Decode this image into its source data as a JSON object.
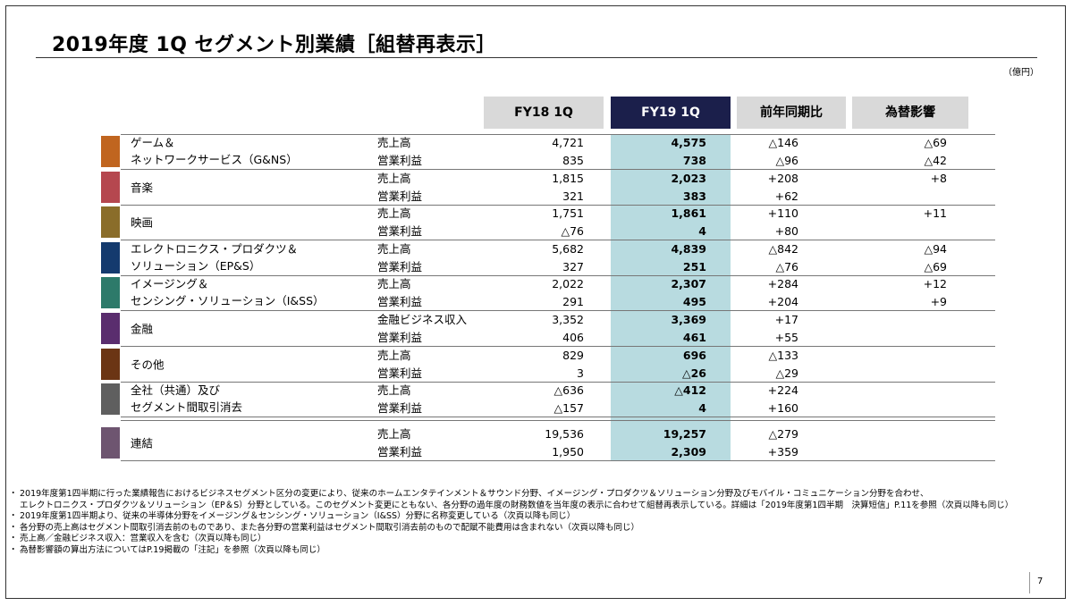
{
  "title": "2019年度 1Q セグメント別業績［組替再表示］",
  "unit": "（億円）",
  "headers": {
    "fy18": "FY18 1Q",
    "fy19": "FY19 1Q",
    "yoy": "前年同期比",
    "fx": "為替影響"
  },
  "segments": [
    {
      "name1": "ゲーム＆",
      "name2": "ネットワークサービス（G&NS）",
      "color": "#c0651f",
      "rows": [
        {
          "metric": "売上高",
          "fy18": "4,721",
          "fy19": "4,575",
          "yoy": "△146",
          "fx": "△69"
        },
        {
          "metric": "営業利益",
          "fy18": "835",
          "fy19": "738",
          "yoy": "△96",
          "fx": "△42"
        }
      ]
    },
    {
      "name1": "音楽",
      "name2": "",
      "color": "#b5474f",
      "rows": [
        {
          "metric": "売上高",
          "fy18": "1,815",
          "fy19": "2,023",
          "yoy": "+208",
          "fx": "+8"
        },
        {
          "metric": "営業利益",
          "fy18": "321",
          "fy19": "383",
          "yoy": "+62",
          "fx": ""
        }
      ]
    },
    {
      "name1": "映画",
      "name2": "",
      "color": "#8a6d2a",
      "rows": [
        {
          "metric": "売上高",
          "fy18": "1,751",
          "fy19": "1,861",
          "yoy": "+110",
          "fx": "+11"
        },
        {
          "metric": "営業利益",
          "fy18": "△76",
          "fy19": "4",
          "yoy": "+80",
          "fx": ""
        }
      ]
    },
    {
      "name1": "エレクトロニクス・プロダクツ＆",
      "name2": "ソリューション（EP&S）",
      "color": "#143a6e",
      "rows": [
        {
          "metric": "売上高",
          "fy18": "5,682",
          "fy19": "4,839",
          "yoy": "△842",
          "fx": "△94"
        },
        {
          "metric": "営業利益",
          "fy18": "327",
          "fy19": "251",
          "yoy": "△76",
          "fx": "△69"
        }
      ]
    },
    {
      "name1": "イメージング＆",
      "name2": "センシング・ソリューション（I&SS）",
      "color": "#2d7a6a",
      "rows": [
        {
          "metric": "売上高",
          "fy18": "2,022",
          "fy19": "2,307",
          "yoy": "+284",
          "fx": "+12"
        },
        {
          "metric": "営業利益",
          "fy18": "291",
          "fy19": "495",
          "yoy": "+204",
          "fx": "+9"
        }
      ]
    },
    {
      "name1": "金融",
      "name2": "",
      "color": "#5a2d6e",
      "rows": [
        {
          "metric": "金融ビジネス収入",
          "fy18": "3,352",
          "fy19": "3,369",
          "yoy": "+17",
          "fx": ""
        },
        {
          "metric": "営業利益",
          "fy18": "406",
          "fy19": "461",
          "yoy": "+55",
          "fx": ""
        }
      ]
    },
    {
      "name1": "その他",
      "name2": "",
      "color": "#6b3514",
      "rows": [
        {
          "metric": "売上高",
          "fy18": "829",
          "fy19": "696",
          "yoy": "△133",
          "fx": ""
        },
        {
          "metric": "営業利益",
          "fy18": "3",
          "fy19": "△26",
          "yoy": "△29",
          "fx": ""
        }
      ]
    },
    {
      "name1": "全社（共通）及び",
      "name2": "セグメント間取引消去",
      "color": "#5f5f5f",
      "rows": [
        {
          "metric": "売上高",
          "fy18": "△636",
          "fy19": "△412",
          "yoy": "+224",
          "fx": ""
        },
        {
          "metric": "営業利益",
          "fy18": "△157",
          "fy19": "4",
          "yoy": "+160",
          "fx": ""
        }
      ]
    },
    {
      "name1": "連結",
      "name2": "",
      "color": "#6e5570",
      "rows": [
        {
          "metric": "売上高",
          "fy18": "19,536",
          "fy19": "19,257",
          "yoy": "△279",
          "fx": ""
        },
        {
          "metric": "営業利益",
          "fy18": "1,950",
          "fy19": "2,309",
          "yoy": "+359",
          "fx": ""
        }
      ]
    }
  ],
  "notes": [
    {
      "text": "2019年度第1四半期に行った業績報告におけるビジネスセグメント区分の変更により、従来のホームエンタテインメント＆サウンド分野、イメージング・プロダクツ＆ソリューション分野及びモバイル・コミュニケーション分野を合わせ、",
      "bullet": true
    },
    {
      "text": "エレクトロニクス・プロダクツ＆ソリューション（EP＆S）分野としている。このセグメント変更にともない、各分野の過年度の財務数値を当年度の表示に合わせて組替再表示している。詳細は「2019年度第1四半期　決算短信」P.11を参照（次頁以降も同じ）",
      "bullet": false
    },
    {
      "text": "2019年度第1四半期より、従来の半導体分野をイメージング＆センシング・ソリューション（I&SS）分野に名称変更している（次頁以降も同じ）",
      "bullet": true
    },
    {
      "text": "各分野の売上高はセグメント間取引消去前のものであり、また各分野の営業利益はセグメント間取引消去前のもので配賦不能費用は含まれない（次頁以降も同じ）",
      "bullet": true
    },
    {
      "text": "売上高／金融ビジネス収入：営業収入を含む（次頁以降も同じ）",
      "bullet": true
    },
    {
      "text": "為替影響額の算出方法についてはP.19掲載の「注記」を参照（次頁以降も同じ）",
      "bullet": true
    }
  ],
  "page_number": "7"
}
